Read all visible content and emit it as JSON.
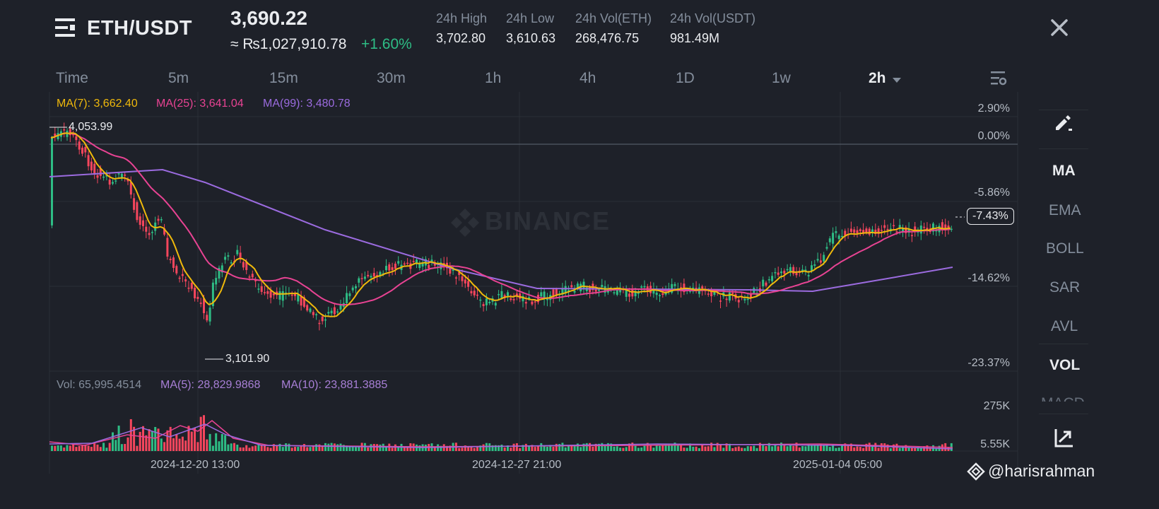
{
  "header": {
    "pair": "ETH/USDT",
    "price": "3,690.22",
    "fiat_price": "≈ ₨1,027,910.78",
    "change": "+1.60%",
    "stats": [
      {
        "label": "24h High",
        "value": "3,702.80"
      },
      {
        "label": "24h Low",
        "value": "3,610.63"
      },
      {
        "label": "24h Vol(ETH)",
        "value": "268,476.75"
      },
      {
        "label": "24h Vol(USDT)",
        "value": "981.49M"
      }
    ]
  },
  "timeframes": [
    "Time",
    "5m",
    "15m",
    "30m",
    "1h",
    "4h",
    "1D",
    "1w"
  ],
  "active_timeframe": "2h",
  "indicators": [
    "MA",
    "EMA",
    "BOLL",
    "SAR",
    "AVL",
    "VOL",
    "MACD"
  ],
  "ma_legend": {
    "ma7": "MA(7): 3,662.40",
    "ma25": "MA(25): 3,641.04",
    "ma99": "MA(99): 3,480.78"
  },
  "vol_legend": {
    "vol": "Vol: 65,995.4514",
    "ma5": "MA(5): 28,829.9868",
    "ma10": "MA(10): 23,881.3885"
  },
  "chart": {
    "high_label": "4,053.99",
    "low_label": "3,101.90",
    "pct_axis": [
      "2.90%",
      "0.00%",
      "-5.86%",
      "-14.62%",
      "-23.37%"
    ],
    "current_pct": "-7.43%",
    "vol_axis": [
      "275K",
      "5.55K"
    ],
    "time_axis": [
      "2024-12-20 13:00",
      "2024-12-27 21:00",
      "2025-01-04 05:00"
    ],
    "watermark": "BINANCE"
  },
  "footer": {
    "handle": "@harisrahman"
  },
  "colors": {
    "up": "#2ebd85",
    "down": "#f6465d",
    "ma7": "#f0b90b",
    "ma25": "#e84393",
    "ma99": "#9b6bdf"
  },
  "icons": {
    "menu": "menu-lines-icon",
    "close": "close-icon",
    "settings": "chart-settings-icon",
    "draw": "pencil-draw-icon",
    "fullscreen": "chart-trend-icon",
    "binance": "binance-diamond-icon"
  }
}
